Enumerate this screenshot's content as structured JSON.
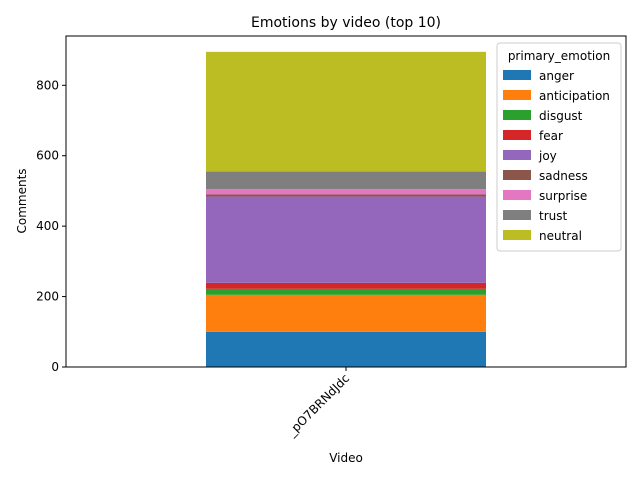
{
  "chart_data": {
    "type": "bar",
    "stacked": true,
    "title": "Emotions by video (top 10)",
    "xlabel": "Video",
    "ylabel": "Comments",
    "categories": [
      "_pO7BRNdJdc"
    ],
    "ylim": [
      0,
      940
    ],
    "yticks": [
      0,
      200,
      400,
      600,
      800
    ],
    "grid": false,
    "legend": {
      "title": "primary_emotion",
      "placement": "top-right"
    },
    "series": [
      {
        "name": "anger",
        "color": "#1f77b4",
        "values": [
          100
        ]
      },
      {
        "name": "anticipation",
        "color": "#ff7f0e",
        "values": [
          105
        ]
      },
      {
        "name": "disgust",
        "color": "#2ca02c",
        "values": [
          17
        ]
      },
      {
        "name": "fear",
        "color": "#d62728",
        "values": [
          17
        ]
      },
      {
        "name": "joy",
        "color": "#9467bd",
        "values": [
          245
        ]
      },
      {
        "name": "sadness",
        "color": "#8c564b",
        "values": [
          6
        ]
      },
      {
        "name": "surprise",
        "color": "#e377c2",
        "values": [
          15
        ]
      },
      {
        "name": "trust",
        "color": "#7f7f7f",
        "values": [
          50
        ]
      },
      {
        "name": "neutral",
        "color": "#bcbd22",
        "values": [
          340
        ]
      }
    ]
  }
}
